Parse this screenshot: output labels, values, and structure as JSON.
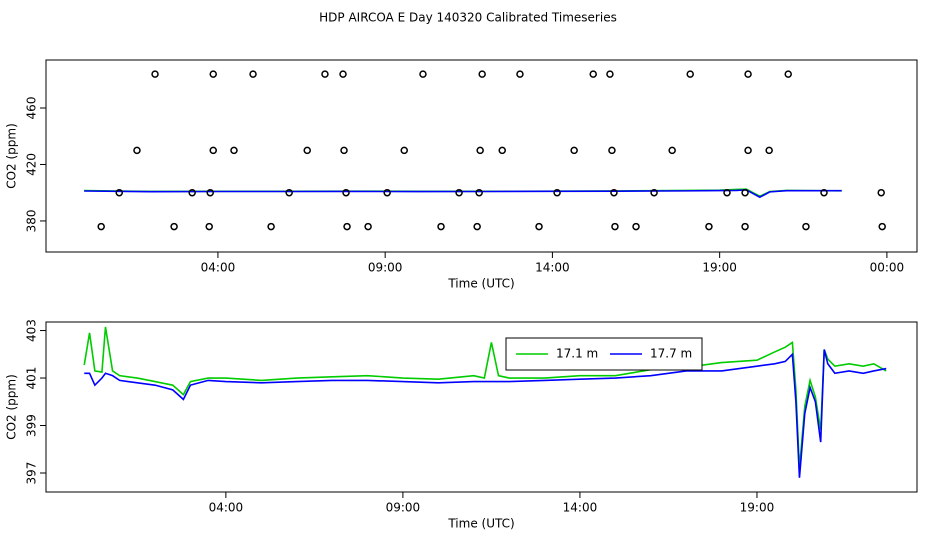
{
  "title": "HDP AIRCOA E  Day 140320  Calibrated Timeseries",
  "chart_data": [
    {
      "type": "line",
      "x_label": "Time (UTC)",
      "y_label": "CO2 (ppm)",
      "xlim": [
        -1.14,
        24.9
      ],
      "ylim": [
        358,
        494
      ],
      "xticks": [
        {
          "value": 4,
          "label": "04:00"
        },
        {
          "value": 9,
          "label": "09:00"
        },
        {
          "value": 14,
          "label": "14:00"
        },
        {
          "value": 19,
          "label": "19:00"
        },
        {
          "value": 24,
          "label": "00:00"
        }
      ],
      "yticks": [
        380,
        420,
        460
      ],
      "series": [
        {
          "color": "#00cc00",
          "x": [
            0,
            2,
            4,
            6,
            8,
            10,
            12,
            14,
            16,
            18,
            19,
            19.5,
            19.8,
            20.2,
            20.5,
            21,
            22.65
          ],
          "values": [
            401.5,
            400.9,
            401,
            401,
            401.1,
            401,
            401,
            401.1,
            401.3,
            401.6,
            401.8,
            402.3,
            402.5,
            397.5,
            400.8,
            401.6,
            401.3
          ]
        },
        {
          "color": "#0000ff",
          "x": [
            0,
            2,
            4,
            6,
            8,
            10,
            12,
            14,
            16,
            18,
            19,
            19.5,
            19.8,
            20.2,
            20.5,
            21,
            22.65
          ],
          "values": [
            401.2,
            400.7,
            400.85,
            400.85,
            400.9,
            400.8,
            400.85,
            400.95,
            401.1,
            401.3,
            401.5,
            401.6,
            402,
            396.8,
            400.6,
            401.4,
            401.4
          ]
        }
      ],
      "points": {
        "color": "#000000",
        "x": [
          2.12,
          3.86,
          5.05,
          7.2,
          7.74,
          10.13,
          11.9,
          13.03,
          15.22,
          15.72,
          18.12,
          19.85,
          21.05,
          1.58,
          3.86,
          4.48,
          6.67,
          7.77,
          9.57,
          11.84,
          12.5,
          14.65,
          15.78,
          17.58,
          19.85,
          20.48,
          1.05,
          3.23,
          3.77,
          6.13,
          7.83,
          9.06,
          11.21,
          11.81,
          14.14,
          15.84,
          17.04,
          19.22,
          19.76,
          22.12,
          23.83,
          0.51,
          2.69,
          3.74,
          5.59,
          7.86,
          8.49,
          10.67,
          11.75,
          13.6,
          15.87,
          16.5,
          18.68,
          19.76,
          21.58,
          23.86
        ],
        "values": [
          484,
          484,
          484,
          484,
          484,
          484,
          484,
          484,
          484,
          484,
          484,
          484,
          484,
          430,
          430,
          430,
          430,
          430,
          430,
          430,
          430,
          430,
          430,
          430,
          430,
          430,
          400,
          400,
          400,
          400,
          400,
          400,
          400,
          400,
          400,
          400,
          400,
          400,
          400,
          400,
          400,
          376,
          376,
          376,
          376,
          376,
          376,
          376,
          376,
          376,
          376,
          376,
          376,
          376,
          376,
          376
        ]
      }
    },
    {
      "type": "line",
      "x_label": "Time (UTC)",
      "y_label": "CO2 (ppm)",
      "xlim": [
        -1.08,
        23.52
      ],
      "ylim": [
        396.2,
        403.36
      ],
      "xticks": [
        {
          "value": 4,
          "label": "04:00"
        },
        {
          "value": 9,
          "label": "09:00"
        },
        {
          "value": 14,
          "label": "14:00"
        },
        {
          "value": 19,
          "label": "19:00"
        }
      ],
      "yticks": [
        397,
        399,
        401,
        403
      ],
      "legend": "top",
      "series": [
        {
          "name": "17.1 m",
          "color": "#00cc00",
          "x": [
            0,
            0.15,
            0.3,
            0.5,
            0.6,
            0.8,
            1,
            1.5,
            2,
            2.5,
            2.8,
            3,
            3.5,
            4,
            5,
            6,
            7,
            8,
            9,
            10,
            11,
            11.3,
            11.5,
            11.7,
            12,
            13,
            14,
            15,
            16,
            17,
            18,
            19,
            19.5,
            19.8,
            20,
            20.1,
            20.2,
            20.35,
            20.5,
            20.65,
            20.8,
            20.9,
            21,
            21.2,
            21.6,
            22,
            22.3,
            22.65
          ],
          "values": [
            401.55,
            402.9,
            401.3,
            401.25,
            403.15,
            401.3,
            401.1,
            401,
            400.85,
            400.7,
            400.3,
            400.85,
            401,
            401,
            400.9,
            401,
            401.05,
            401.1,
            401,
            400.95,
            401.1,
            401,
            402.5,
            401.1,
            401,
            401,
            401.1,
            401.1,
            401.35,
            401.45,
            401.65,
            401.75,
            402.1,
            402.3,
            402.5,
            400.5,
            397.2,
            399.8,
            400.9,
            400.2,
            398.8,
            402.2,
            401.8,
            401.5,
            401.6,
            401.5,
            401.6,
            401.3
          ]
        },
        {
          "name": "17.7 m",
          "color": "#0000ff",
          "x": [
            0,
            0.15,
            0.3,
            0.5,
            0.6,
            0.8,
            1,
            1.5,
            2,
            2.5,
            2.8,
            3,
            3.5,
            4,
            5,
            6,
            7,
            8,
            9,
            10,
            11,
            11.3,
            11.5,
            11.7,
            12,
            13,
            14,
            15,
            16,
            17,
            18,
            19,
            19.5,
            19.8,
            20,
            20.1,
            20.2,
            20.35,
            20.5,
            20.65,
            20.8,
            20.9,
            21,
            21.2,
            21.6,
            22,
            22.3,
            22.65
          ],
          "values": [
            401.2,
            401.2,
            400.7,
            401,
            401.2,
            401.1,
            400.9,
            400.8,
            400.7,
            400.5,
            400.1,
            400.7,
            400.9,
            400.85,
            400.8,
            400.85,
            400.9,
            400.9,
            400.85,
            400.8,
            400.85,
            400.85,
            400.85,
            400.85,
            400.85,
            400.9,
            400.95,
            401,
            401.1,
            401.3,
            401.3,
            401.5,
            401.6,
            401.7,
            402,
            400,
            396.8,
            399.5,
            400.6,
            400,
            398.3,
            402.2,
            401.6,
            401.2,
            401.3,
            401.2,
            401.3,
            401.4
          ]
        }
      ]
    }
  ]
}
